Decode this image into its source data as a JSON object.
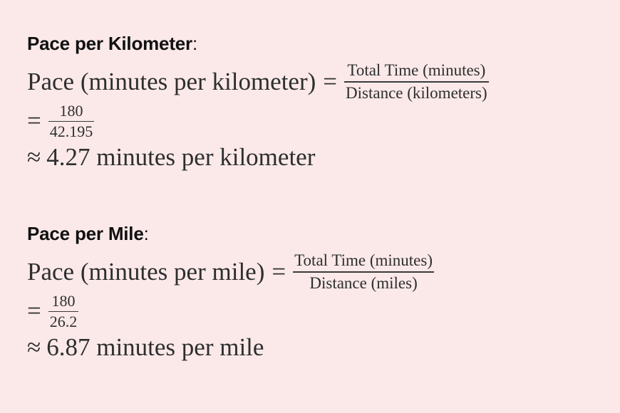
{
  "sections": [
    {
      "heading": "Pace per Kilometer",
      "colon": ":",
      "formula": {
        "lhs": "Pace (minutes per kilometer)",
        "eq": "=",
        "numerator": "Total Time (minutes)",
        "denominator": "Distance (kilometers)"
      },
      "step": {
        "eq": "=",
        "numerator": "180",
        "denominator": "42.195"
      },
      "result": {
        "approx": "≈",
        "text": "4.27 minutes per kilometer"
      }
    },
    {
      "heading": "Pace per Mile",
      "colon": ":",
      "formula": {
        "lhs": "Pace (minutes per mile)",
        "eq": "=",
        "numerator": "Total Time (minutes)",
        "denominator": "Distance (miles)"
      },
      "step": {
        "eq": "=",
        "numerator": "180",
        "denominator": "26.2"
      },
      "result": {
        "approx": "≈",
        "text": "6.87 minutes per mile"
      }
    }
  ]
}
